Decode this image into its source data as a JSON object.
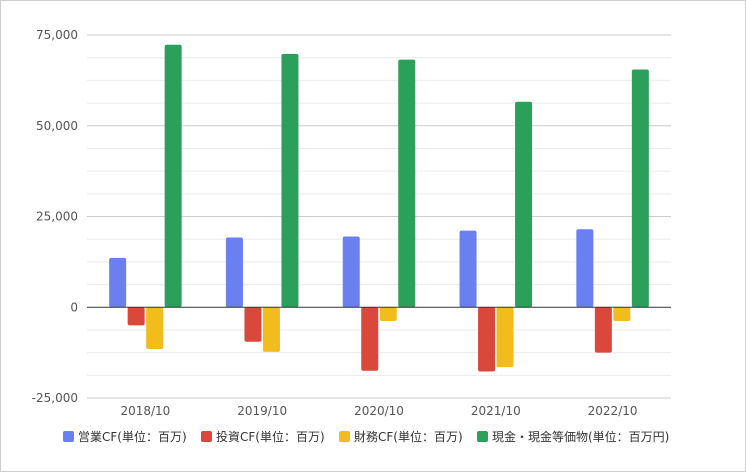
{
  "chart_data": {
    "type": "bar",
    "categories": [
      "2018/10",
      "2019/10",
      "2020/10",
      "2021/10",
      "2022/10"
    ],
    "series": [
      {
        "name": "営業CF(単位：百万)",
        "color": "#6a7ff0",
        "values": [
          13600,
          19200,
          19500,
          21100,
          21500
        ]
      },
      {
        "name": "投資CF(単位：百万)",
        "color": "#d9483b",
        "values": [
          -5000,
          -9500,
          -17500,
          -17700,
          -12500
        ]
      },
      {
        "name": "財務CF(単位：百万)",
        "color": "#f2bd1c",
        "values": [
          -11500,
          -12300,
          -3800,
          -16500,
          -3800
        ]
      },
      {
        "name": "現金・現金等価物(単位：百万円)",
        "color": "#2ba05a",
        "values": [
          72300,
          69800,
          68200,
          56600,
          65500
        ]
      }
    ],
    "ylim": [
      -25000,
      75000
    ],
    "yticks": [
      -25000,
      0,
      25000,
      50000,
      75000
    ],
    "ytick_labels": [
      "-25,000",
      "0",
      "25,000",
      "50,000",
      "75,000"
    ],
    "grid": true,
    "legend_position": "bottom",
    "title": "",
    "xlabel": "",
    "ylabel": ""
  }
}
